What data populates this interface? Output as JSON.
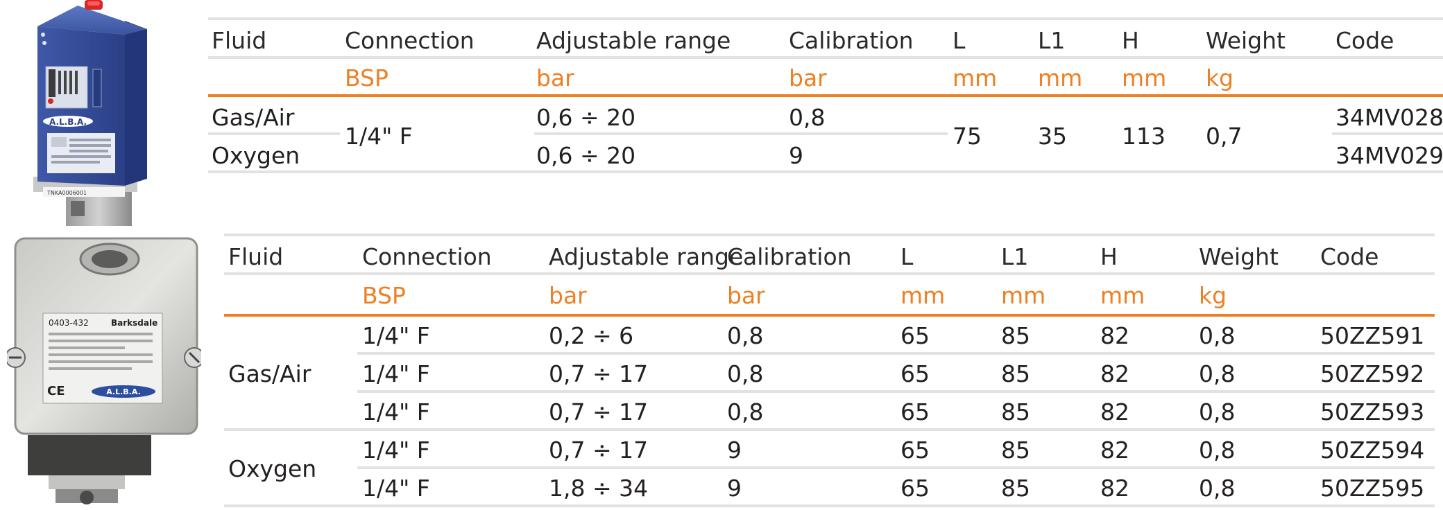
{
  "table1": {
    "headers": [
      "Fluid",
      "Connection",
      "Adjustable range",
      "Calibration",
      "L",
      "L1",
      "H",
      "Weight",
      "Code"
    ],
    "units": [
      "",
      "BSP",
      "bar",
      "bar",
      "mm",
      "mm",
      "mm",
      "kg",
      ""
    ],
    "rows": [
      {
        "fluid": "Gas/Air",
        "range": "0,6 ÷ 20",
        "calibration": "0,8",
        "code": "34MV028"
      },
      {
        "fluid": "Oxygen",
        "range": "0,6 ÷ 20",
        "calibration": "9",
        "code": "34MV029"
      }
    ],
    "shared": {
      "connection": "1/4\" F",
      "L": "75",
      "L1": "35",
      "H": "113",
      "weight": "0,7"
    }
  },
  "table2": {
    "headers": [
      "Fluid",
      "Connection",
      "Adjustable range",
      "Calibration",
      "L",
      "L1",
      "H",
      "Weight",
      "Code"
    ],
    "units": [
      "",
      "BSP",
      "bar",
      "bar",
      "mm",
      "mm",
      "mm",
      "kg",
      ""
    ],
    "groups": [
      {
        "fluid": "Gas/Air",
        "rows": [
          {
            "connection": "1/4\" F",
            "range": "0,2 ÷ 6",
            "calibration": "0,8",
            "L": "65",
            "L1": "85",
            "H": "82",
            "weight": "0,8",
            "code": "50ZZ591"
          },
          {
            "connection": "1/4\" F",
            "range": "0,7 ÷ 17",
            "calibration": "0,8",
            "L": "65",
            "L1": "85",
            "H": "82",
            "weight": "0,8",
            "code": "50ZZ592"
          },
          {
            "connection": "1/4\" F",
            "range": "0,7 ÷ 17",
            "calibration": "0,8",
            "L": "65",
            "L1": "85",
            "H": "82",
            "weight": "0,8",
            "code": "50ZZ593"
          }
        ]
      },
      {
        "fluid": "Oxygen",
        "rows": [
          {
            "connection": "1/4\" F",
            "range": "0,7 ÷ 17",
            "calibration": "9",
            "L": "65",
            "L1": "85",
            "H": "82",
            "weight": "0,8",
            "code": "50ZZ594"
          },
          {
            "connection": "1/4\" F",
            "range": "1,8 ÷ 34",
            "calibration": "9",
            "L": "65",
            "L1": "85",
            "H": "82",
            "weight": "0,8",
            "code": "50ZZ595"
          }
        ]
      }
    ]
  },
  "product1": {
    "brand": "A.L.B.A.",
    "serial": "TNKA0006001"
  },
  "product2": {
    "brand": "A.L.B.A.",
    "label_code": "0403-432",
    "maker": "Barksdale"
  },
  "colors": {
    "accent": "#ee7f22",
    "divider": "#e2e2e2",
    "text": "#231f20"
  }
}
